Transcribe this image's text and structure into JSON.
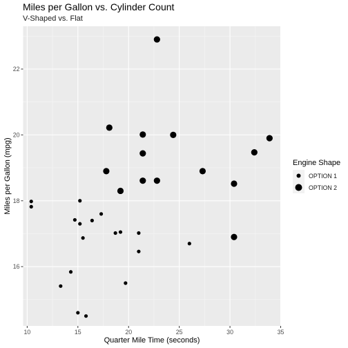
{
  "chart_data": {
    "type": "scatter",
    "title": "Miles per Gallon vs. Cylinder Count",
    "subtitle": "V-Shaped vs. Flat",
    "xlabel": "Quarter Mile Time (seconds)",
    "ylabel": "Miles per Gallon (mpg)",
    "xlim": [
      9.6,
      35.0
    ],
    "ylim": [
      14.2,
      23.3
    ],
    "xticks": [
      10,
      15,
      20,
      25,
      30,
      35
    ],
    "yticks": [
      16,
      18,
      20,
      22
    ],
    "grid": true,
    "legend": {
      "title": "Engine Shape",
      "placement": "right",
      "entries": [
        "OPTION 1",
        "OPTION 2"
      ]
    },
    "series": [
      {
        "name": "OPTION 1",
        "points": [
          {
            "x": 10.4,
            "y": 17.98
          },
          {
            "x": 10.4,
            "y": 17.82
          },
          {
            "x": 13.3,
            "y": 15.41
          },
          {
            "x": 14.3,
            "y": 15.84
          },
          {
            "x": 14.7,
            "y": 17.42
          },
          {
            "x": 15.0,
            "y": 14.6
          },
          {
            "x": 15.2,
            "y": 18.0
          },
          {
            "x": 15.2,
            "y": 17.3
          },
          {
            "x": 15.5,
            "y": 16.87
          },
          {
            "x": 15.8,
            "y": 14.5
          },
          {
            "x": 16.4,
            "y": 17.4
          },
          {
            "x": 17.3,
            "y": 17.6
          },
          {
            "x": 18.7,
            "y": 17.02
          },
          {
            "x": 19.2,
            "y": 17.05
          },
          {
            "x": 19.7,
            "y": 15.5
          },
          {
            "x": 21.0,
            "y": 17.02
          },
          {
            "x": 21.0,
            "y": 16.46
          },
          {
            "x": 26.0,
            "y": 16.7
          }
        ]
      },
      {
        "name": "OPTION 2",
        "points": [
          {
            "x": 17.8,
            "y": 18.9
          },
          {
            "x": 18.1,
            "y": 20.22
          },
          {
            "x": 19.2,
            "y": 18.3
          },
          {
            "x": 21.4,
            "y": 20.01
          },
          {
            "x": 21.4,
            "y": 19.44
          },
          {
            "x": 21.4,
            "y": 18.61
          },
          {
            "x": 22.8,
            "y": 22.9
          },
          {
            "x": 22.8,
            "y": 18.61
          },
          {
            "x": 24.4,
            "y": 20.0
          },
          {
            "x": 27.3,
            "y": 18.9
          },
          {
            "x": 30.4,
            "y": 18.52
          },
          {
            "x": 30.4,
            "y": 16.9
          },
          {
            "x": 32.4,
            "y": 19.47
          },
          {
            "x": 33.9,
            "y": 19.9
          }
        ]
      }
    ]
  },
  "colors": {
    "panel": "#ebebeb",
    "grid_major": "#ffffff",
    "points": "#000000"
  }
}
